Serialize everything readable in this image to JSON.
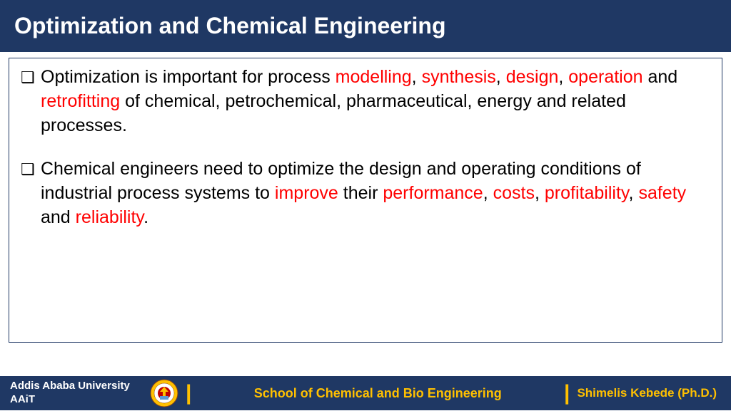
{
  "colors": {
    "header_bg": "#1f3864",
    "header_text": "#ffffff",
    "highlight": "#ff0000",
    "body_text": "#000000",
    "footer_bg": "#1f3864",
    "footer_accent": "#ffc000",
    "border": "#1f3864",
    "background": "#ffffff"
  },
  "typography": {
    "title_fontsize": 32,
    "body_fontsize": 25,
    "footer_fontsize": 15,
    "font_family": "Century Gothic"
  },
  "title": "Optimization and Chemical Engineering",
  "bullets": [
    {
      "segments": [
        {
          "t": "Optimization is important for process ",
          "hl": false
        },
        {
          "t": "modelling",
          "hl": true
        },
        {
          "t": ", ",
          "hl": false
        },
        {
          "t": "synthesis",
          "hl": true
        },
        {
          "t": ", ",
          "hl": false
        },
        {
          "t": "design",
          "hl": true
        },
        {
          "t": ", ",
          "hl": false
        },
        {
          "t": "operation",
          "hl": true
        },
        {
          "t": " and ",
          "hl": false
        },
        {
          "t": "retrofitting",
          "hl": true
        },
        {
          "t": " of chemical, petrochemical, pharmaceutical, energy and related processes.",
          "hl": false
        }
      ]
    },
    {
      "segments": [
        {
          "t": "Chemical engineers need to optimize the design and operating conditions of industrial process systems to ",
          "hl": false
        },
        {
          "t": "improve",
          "hl": true
        },
        {
          "t": " their ",
          "hl": false
        },
        {
          "t": "performance",
          "hl": true
        },
        {
          "t": ", ",
          "hl": false
        },
        {
          "t": "costs",
          "hl": true
        },
        {
          "t": ", ",
          "hl": false
        },
        {
          "t": "profitability",
          "hl": true
        },
        {
          "t": ", ",
          "hl": false
        },
        {
          "t": "safety",
          "hl": true
        },
        {
          "t": " and ",
          "hl": false
        },
        {
          "t": "reliability",
          "hl": true
        },
        {
          "t": ".",
          "hl": false
        }
      ]
    }
  ],
  "footer": {
    "left_line1": "Addis Ababa University",
    "left_line2": "AAiT",
    "center": "School of Chemical and Bio Engineering",
    "right": "Shimelis Kebede (Ph.D.)",
    "separator": "|"
  }
}
